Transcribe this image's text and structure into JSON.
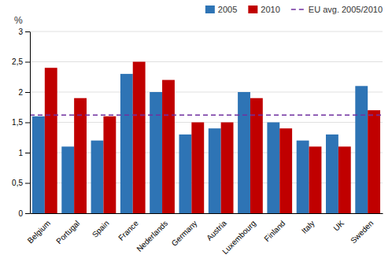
{
  "chart_data": {
    "type": "bar",
    "y_label": "%",
    "categories": [
      "Belgium",
      "Portugal",
      "Spain",
      "France",
      "Nederlands",
      "Germany",
      "Austria",
      "Luxembourg",
      "Finland",
      "Italy",
      "UK",
      "Sweden"
    ],
    "series": [
      {
        "name": "2005",
        "color": "#2E74B5",
        "values": [
          1.6,
          1.1,
          1.2,
          2.3,
          2.0,
          1.3,
          1.4,
          2.0,
          1.5,
          1.2,
          1.3,
          2.1
        ]
      },
      {
        "name": "2010",
        "color": "#C00000",
        "values": [
          2.4,
          1.9,
          1.6,
          2.5,
          2.2,
          1.5,
          1.5,
          1.9,
          1.4,
          1.1,
          1.1,
          1.7
        ]
      }
    ],
    "reference_line": {
      "name": "EU avg. 2005/2010",
      "value": 1.62,
      "color": "#7030A0",
      "line_style": "dashed"
    },
    "ylim": [
      0,
      3
    ],
    "yticks": [
      0,
      {
        "value": 0.5,
        "label": "0,5"
      },
      1,
      {
        "value": 1.5,
        "label": "1,5"
      },
      2,
      {
        "value": 2.5,
        "label": "2,5"
      },
      3
    ],
    "grid": true,
    "legend": "top-right"
  }
}
